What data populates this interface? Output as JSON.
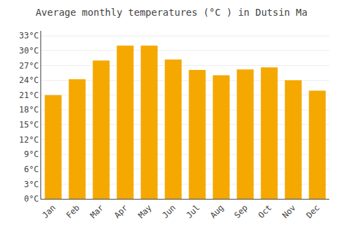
{
  "chart_data": {
    "type": "bar",
    "title": "Average monthly temperatures (°C ) in Dutsin Ma",
    "categories": [
      "Jan",
      "Feb",
      "Mar",
      "Apr",
      "May",
      "Jun",
      "Jul",
      "Aug",
      "Sep",
      "Oct",
      "Nov",
      "Dec"
    ],
    "values": [
      21.0,
      24.2,
      28.0,
      31.0,
      31.0,
      28.2,
      26.1,
      25.0,
      26.2,
      26.6,
      24.0,
      21.9
    ],
    "color": "#F5A800",
    "ylim": [
      0,
      34
    ],
    "yticks": [
      {
        "value": 0,
        "label": "0°C"
      },
      {
        "value": 3,
        "label": "3°C"
      },
      {
        "value": 6,
        "label": "6°C"
      },
      {
        "value": 9,
        "label": "9°C"
      },
      {
        "value": 12,
        "label": "12°C"
      },
      {
        "value": 15,
        "label": "15°C"
      },
      {
        "value": 18,
        "label": "18°C"
      },
      {
        "value": 21,
        "label": "21°C"
      },
      {
        "value": 24,
        "label": "24°C"
      },
      {
        "value": 27,
        "label": "27°C"
      },
      {
        "value": 30,
        "label": "30°C"
      },
      {
        "value": 33,
        "label": "33°C"
      }
    ],
    "grid": true
  }
}
